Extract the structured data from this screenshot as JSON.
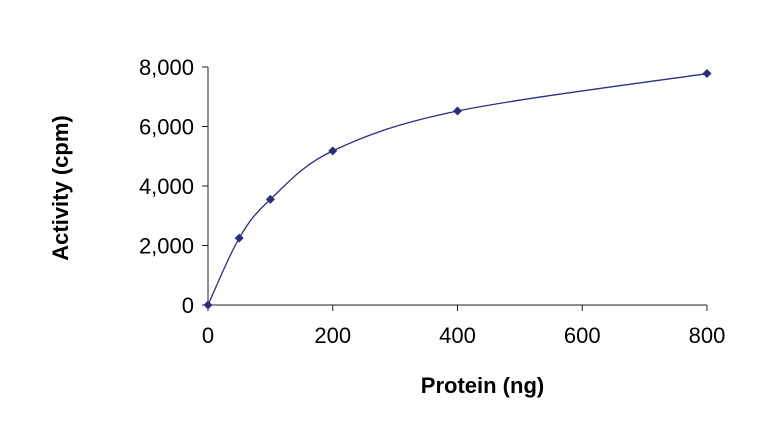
{
  "chart_data": {
    "type": "line",
    "title": "",
    "xlabel": "Protein (ng)",
    "ylabel": "Activity (cpm)",
    "xlim": [
      0,
      800
    ],
    "ylim": [
      0,
      8000
    ],
    "x_ticks": [
      0,
      200,
      400,
      600,
      800
    ],
    "y_ticks": [
      0,
      2000,
      4000,
      6000,
      8000
    ],
    "x_tick_labels": [
      "0",
      "200",
      "400",
      "600",
      "800"
    ],
    "y_tick_labels": [
      "0",
      "2,000",
      "4,000",
      "6,000",
      "8,000"
    ],
    "grid": false,
    "legend": false,
    "series": [
      {
        "x": [
          0,
          50,
          100,
          200,
          400,
          800
        ],
        "y": [
          0,
          2250,
          3550,
          5180,
          6520,
          7780
        ],
        "color": "#2b2f7a",
        "marker": "diamond",
        "smooth": true
      }
    ]
  }
}
